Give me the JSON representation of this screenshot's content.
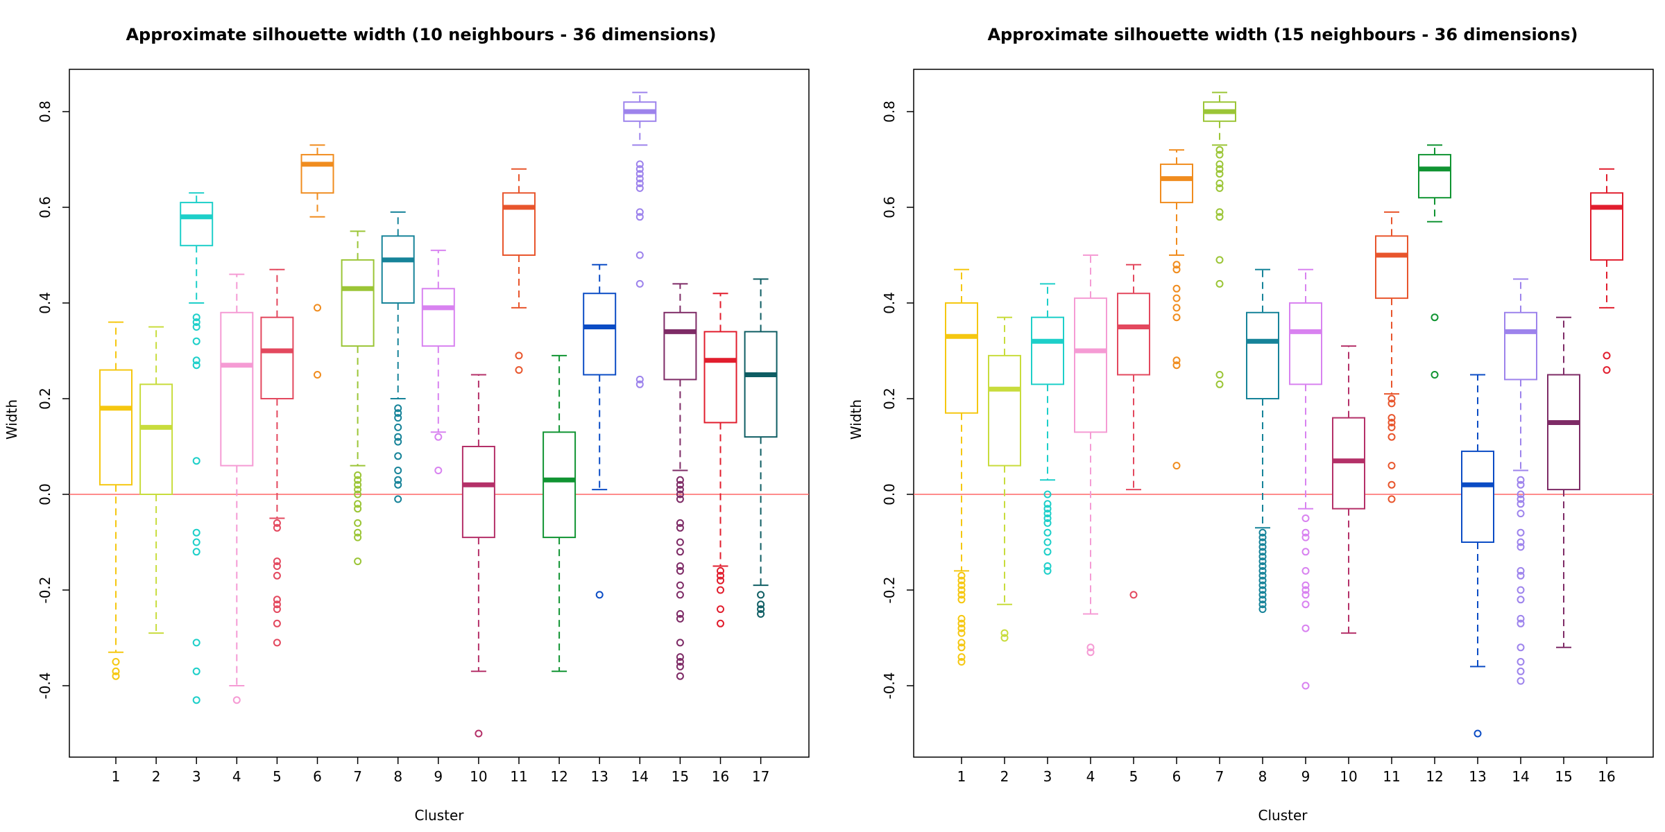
{
  "chart_data": [
    {
      "type": "boxplot",
      "title": "Approximate silhouette width (10 neighbours - 36 dimensions)",
      "xlabel": "Cluster",
      "ylabel": "Width",
      "ylim": [
        -0.55,
        0.88
      ],
      "yticks": [
        "-0.4",
        "-0.2",
        "0.0",
        "0.2",
        "0.4",
        "0.6",
        "0.8"
      ],
      "reference_line": {
        "y": 0.0,
        "color": "#ff6666"
      },
      "grid": false,
      "legend": "none",
      "categories": [
        "1",
        "2",
        "3",
        "4",
        "5",
        "6",
        "7",
        "8",
        "9",
        "10",
        "11",
        "12",
        "13",
        "14",
        "15",
        "16",
        "17"
      ],
      "boxes": [
        {
          "cluster": "1",
          "color": "#F5C710",
          "whisker_low": -0.33,
          "q1": 0.02,
          "median": 0.18,
          "q3": 0.26,
          "whisker_high": 0.36,
          "outliers": [
            -0.35,
            -0.37,
            -0.38
          ]
        },
        {
          "cluster": "2",
          "color": "#C8DC3C",
          "whisker_low": -0.29,
          "q1": 0.0,
          "median": 0.14,
          "q3": 0.23,
          "whisker_high": 0.35,
          "outliers": []
        },
        {
          "cluster": "3",
          "color": "#1DCFC9",
          "whisker_low": 0.4,
          "q1": 0.52,
          "median": 0.58,
          "q3": 0.61,
          "whisker_high": 0.63,
          "outliers": [
            0.37,
            0.36,
            0.35,
            0.32,
            0.28,
            0.27,
            0.07,
            -0.08,
            -0.1,
            -0.12,
            -0.31,
            -0.37,
            -0.43
          ]
        },
        {
          "cluster": "4",
          "color": "#F59BD4",
          "whisker_low": -0.4,
          "q1": 0.06,
          "median": 0.27,
          "q3": 0.38,
          "whisker_high": 0.46,
          "outliers": [
            -0.43
          ]
        },
        {
          "cluster": "5",
          "color": "#E3485E",
          "whisker_low": -0.05,
          "q1": 0.2,
          "median": 0.3,
          "q3": 0.37,
          "whisker_high": 0.47,
          "outliers": [
            -0.06,
            -0.07,
            -0.14,
            -0.15,
            -0.17,
            -0.22,
            -0.23,
            -0.24,
            -0.27,
            -0.31
          ]
        },
        {
          "cluster": "6",
          "color": "#F08C1E",
          "whisker_low": 0.58,
          "q1": 0.63,
          "median": 0.69,
          "q3": 0.71,
          "whisker_high": 0.73,
          "outliers": [
            0.39,
            0.25
          ]
        },
        {
          "cluster": "7",
          "color": "#9BC536",
          "whisker_low": 0.06,
          "q1": 0.31,
          "median": 0.43,
          "q3": 0.49,
          "whisker_high": 0.55,
          "outliers": [
            0.04,
            0.03,
            0.02,
            0.01,
            0.0,
            -0.02,
            -0.03,
            -0.06,
            -0.08,
            -0.09,
            -0.14
          ]
        },
        {
          "cluster": "8",
          "color": "#168399",
          "whisker_low": 0.2,
          "q1": 0.4,
          "median": 0.49,
          "q3": 0.54,
          "whisker_high": 0.59,
          "outliers": [
            0.18,
            0.17,
            0.16,
            0.14,
            0.12,
            0.11,
            0.08,
            0.05,
            0.03,
            0.02,
            -0.01
          ]
        },
        {
          "cluster": "9",
          "color": "#D882F0",
          "whisker_low": 0.13,
          "q1": 0.31,
          "median": 0.39,
          "q3": 0.43,
          "whisker_high": 0.51,
          "outliers": [
            0.12,
            0.05
          ]
        },
        {
          "cluster": "10",
          "color": "#B43068",
          "whisker_low": -0.37,
          "q1": -0.09,
          "median": 0.02,
          "q3": 0.1,
          "whisker_high": 0.25,
          "outliers": [
            -0.5
          ]
        },
        {
          "cluster": "11",
          "color": "#E8552C",
          "whisker_low": 0.39,
          "q1": 0.5,
          "median": 0.6,
          "q3": 0.63,
          "whisker_high": 0.68,
          "outliers": [
            0.29,
            0.26
          ]
        },
        {
          "cluster": "12",
          "color": "#109432",
          "whisker_low": -0.37,
          "q1": -0.09,
          "median": 0.03,
          "q3": 0.13,
          "whisker_high": 0.29,
          "outliers": []
        },
        {
          "cluster": "13",
          "color": "#0B4CC5",
          "whisker_low": 0.01,
          "q1": 0.25,
          "median": 0.35,
          "q3": 0.42,
          "whisker_high": 0.48,
          "outliers": [
            -0.21
          ]
        },
        {
          "cluster": "14",
          "color": "#9D83EC",
          "whisker_low": 0.73,
          "q1": 0.78,
          "median": 0.8,
          "q3": 0.82,
          "whisker_high": 0.84,
          "outliers": [
            0.69,
            0.68,
            0.67,
            0.66,
            0.65,
            0.64,
            0.59,
            0.58,
            0.5,
            0.44,
            0.24,
            0.23
          ]
        },
        {
          "cluster": "15",
          "color": "#7E2B66",
          "whisker_low": 0.05,
          "q1": 0.24,
          "median": 0.34,
          "q3": 0.38,
          "whisker_high": 0.44,
          "outliers": [
            0.03,
            0.02,
            0.01,
            0.0,
            -0.01,
            -0.06,
            -0.07,
            -0.1,
            -0.12,
            -0.15,
            -0.16,
            -0.19,
            -0.21,
            -0.25,
            -0.26,
            -0.31,
            -0.34,
            -0.35,
            -0.36,
            -0.38
          ]
        },
        {
          "cluster": "16",
          "color": "#E11D2D",
          "whisker_low": -0.15,
          "q1": 0.15,
          "median": 0.28,
          "q3": 0.34,
          "whisker_high": 0.42,
          "outliers": [
            -0.16,
            -0.17,
            -0.18,
            -0.2,
            -0.24,
            -0.27
          ]
        },
        {
          "cluster": "17",
          "color": "#0E5D63",
          "whisker_low": -0.19,
          "q1": 0.12,
          "median": 0.25,
          "q3": 0.34,
          "whisker_high": 0.45,
          "outliers": [
            -0.21,
            -0.23,
            -0.24,
            -0.25
          ]
        }
      ]
    },
    {
      "type": "boxplot",
      "title": "Approximate silhouette width (15 neighbours - 36 dimensions)",
      "xlabel": "Cluster",
      "ylabel": "Width",
      "ylim": [
        -0.55,
        0.88
      ],
      "yticks": [
        "-0.4",
        "-0.2",
        "0.0",
        "0.2",
        "0.4",
        "0.6",
        "0.8"
      ],
      "reference_line": {
        "y": 0.0,
        "color": "#ff6666"
      },
      "grid": false,
      "legend": "none",
      "categories": [
        "1",
        "2",
        "3",
        "4",
        "5",
        "6",
        "7",
        "8",
        "9",
        "10",
        "11",
        "12",
        "13",
        "14",
        "15",
        "16"
      ],
      "boxes": [
        {
          "cluster": "1",
          "color": "#F5C710",
          "whisker_low": -0.16,
          "q1": 0.17,
          "median": 0.33,
          "q3": 0.4,
          "whisker_high": 0.47,
          "outliers": [
            -0.17,
            -0.18,
            -0.19,
            -0.2,
            -0.21,
            -0.22,
            -0.26,
            -0.27,
            -0.28,
            -0.29,
            -0.31,
            -0.32,
            -0.34,
            -0.35
          ]
        },
        {
          "cluster": "2",
          "color": "#C8DC3C",
          "whisker_low": -0.23,
          "q1": 0.06,
          "median": 0.22,
          "q3": 0.29,
          "whisker_high": 0.37,
          "outliers": [
            -0.29,
            -0.3
          ]
        },
        {
          "cluster": "3",
          "color": "#1DCFC9",
          "whisker_low": 0.03,
          "q1": 0.23,
          "median": 0.32,
          "q3": 0.37,
          "whisker_high": 0.44,
          "outliers": [
            0.0,
            -0.02,
            -0.03,
            -0.04,
            -0.05,
            -0.06,
            -0.08,
            -0.1,
            -0.12,
            -0.15,
            -0.16
          ]
        },
        {
          "cluster": "4",
          "color": "#F59BD4",
          "whisker_low": -0.25,
          "q1": 0.13,
          "median": 0.3,
          "q3": 0.41,
          "whisker_high": 0.5,
          "outliers": [
            -0.32,
            -0.33
          ]
        },
        {
          "cluster": "5",
          "color": "#E3485E",
          "whisker_low": 0.01,
          "q1": 0.25,
          "median": 0.35,
          "q3": 0.42,
          "whisker_high": 0.48,
          "outliers": [
            -0.21
          ]
        },
        {
          "cluster": "6",
          "color": "#F08C1E",
          "whisker_low": 0.5,
          "q1": 0.61,
          "median": 0.66,
          "q3": 0.69,
          "whisker_high": 0.72,
          "outliers": [
            0.48,
            0.47,
            0.43,
            0.41,
            0.39,
            0.37,
            0.28,
            0.27,
            0.06
          ]
        },
        {
          "cluster": "7",
          "color": "#9BC536",
          "whisker_low": 0.73,
          "q1": 0.78,
          "median": 0.8,
          "q3": 0.82,
          "whisker_high": 0.84,
          "outliers": [
            0.72,
            0.71,
            0.69,
            0.68,
            0.67,
            0.65,
            0.64,
            0.59,
            0.58,
            0.49,
            0.44,
            0.25,
            0.23
          ]
        },
        {
          "cluster": "8",
          "color": "#168399",
          "whisker_low": -0.07,
          "q1": 0.2,
          "median": 0.32,
          "q3": 0.38,
          "whisker_high": 0.47,
          "outliers": [
            -0.08,
            -0.09,
            -0.1,
            -0.11,
            -0.12,
            -0.13,
            -0.14,
            -0.15,
            -0.16,
            -0.17,
            -0.18,
            -0.19,
            -0.2,
            -0.21,
            -0.22,
            -0.23,
            -0.24
          ]
        },
        {
          "cluster": "9",
          "color": "#D882F0",
          "whisker_low": -0.03,
          "q1": 0.23,
          "median": 0.34,
          "q3": 0.4,
          "whisker_high": 0.47,
          "outliers": [
            -0.05,
            -0.08,
            -0.09,
            -0.12,
            -0.16,
            -0.19,
            -0.2,
            -0.21,
            -0.23,
            -0.28,
            -0.4
          ]
        },
        {
          "cluster": "10",
          "color": "#B43068",
          "whisker_low": -0.29,
          "q1": -0.03,
          "median": 0.07,
          "q3": 0.16,
          "whisker_high": 0.31,
          "outliers": []
        },
        {
          "cluster": "11",
          "color": "#E8552C",
          "whisker_low": 0.21,
          "q1": 0.41,
          "median": 0.5,
          "q3": 0.54,
          "whisker_high": 0.59,
          "outliers": [
            0.2,
            0.19,
            0.16,
            0.15,
            0.14,
            0.12,
            0.06,
            0.02,
            -0.01
          ]
        },
        {
          "cluster": "12",
          "color": "#109432",
          "whisker_low": 0.57,
          "q1": 0.62,
          "median": 0.68,
          "q3": 0.71,
          "whisker_high": 0.73,
          "outliers": [
            0.37,
            0.25
          ]
        },
        {
          "cluster": "13",
          "color": "#0B4CC5",
          "whisker_low": -0.36,
          "q1": -0.1,
          "median": 0.02,
          "q3": 0.09,
          "whisker_high": 0.25,
          "outliers": [
            -0.5
          ]
        },
        {
          "cluster": "14",
          "color": "#9D83EC",
          "whisker_low": 0.05,
          "q1": 0.24,
          "median": 0.34,
          "q3": 0.38,
          "whisker_high": 0.45,
          "outliers": [
            0.03,
            0.02,
            0.0,
            -0.01,
            -0.02,
            -0.04,
            -0.08,
            -0.1,
            -0.11,
            -0.16,
            -0.17,
            -0.2,
            -0.22,
            -0.26,
            -0.27,
            -0.32,
            -0.35,
            -0.37,
            -0.39
          ]
        },
        {
          "cluster": "15",
          "color": "#7E2B66",
          "whisker_low": -0.32,
          "q1": 0.01,
          "median": 0.15,
          "q3": 0.25,
          "whisker_high": 0.37,
          "outliers": []
        },
        {
          "cluster": "16",
          "color": "#E11D2D",
          "whisker_low": 0.39,
          "q1": 0.49,
          "median": 0.6,
          "q3": 0.63,
          "whisker_high": 0.68,
          "outliers": [
            0.29,
            0.26
          ]
        }
      ]
    }
  ]
}
